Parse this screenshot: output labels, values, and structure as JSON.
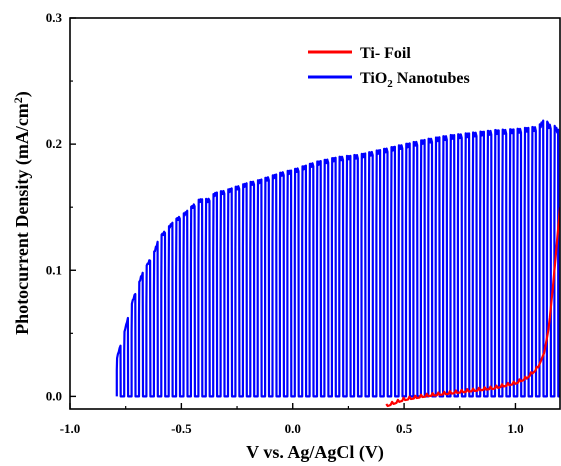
{
  "chart_data": {
    "type": "line",
    "title": "",
    "xlabel": "V vs. Ag/AgCl (V)",
    "ylabel_parts": {
      "pre": "Photocurrent Density (mA/cm",
      "sup": "2",
      "post": ")"
    },
    "xlim": [
      -1.0,
      1.2
    ],
    "ylim": [
      -0.01,
      0.3
    ],
    "xticks": [
      -1.0,
      -0.5,
      0.0,
      0.5,
      1.0
    ],
    "xtick_labels": [
      "-1.0",
      "-0.5",
      "0.0",
      "0.5",
      "1.0"
    ],
    "yticks": [
      0.0,
      0.1,
      0.2,
      0.3
    ],
    "ytick_labels": [
      "0.0",
      "0.1",
      "0.2",
      "0.3"
    ],
    "legend_position": "top-right",
    "series": [
      {
        "key": "ti_foil",
        "name": "Ti- Foil",
        "color": "#ff0000",
        "style": "smooth",
        "x": [
          0.42,
          0.5,
          0.6,
          0.7,
          0.8,
          0.9,
          1.0,
          1.05,
          1.1,
          1.13,
          1.15,
          1.17,
          1.19,
          1.2
        ],
        "y": [
          -0.008,
          -0.003,
          0.0,
          0.002,
          0.004,
          0.006,
          0.01,
          0.014,
          0.022,
          0.035,
          0.055,
          0.09,
          0.13,
          0.15
        ]
      },
      {
        "key": "tio2",
        "name_parts": {
          "pre": "TiO",
          "sub": "2",
          "post": " Nanotubes"
        },
        "color": "#0000ff",
        "style": "chopped",
        "pulse_period_v": 0.0333,
        "pulse_on_fraction": 0.5,
        "dark_current": 0.0,
        "x_start": -0.79,
        "x_end": 1.2,
        "envelope_x": [
          -0.79,
          -0.75,
          -0.72,
          -0.7,
          -0.68,
          -0.65,
          -0.62,
          -0.6,
          -0.55,
          -0.52,
          -0.48,
          -0.45,
          -0.42,
          -0.38,
          -0.35,
          -0.3,
          -0.25,
          -0.2,
          -0.15,
          -0.1,
          -0.05,
          0.0,
          0.1,
          0.2,
          0.3,
          0.4,
          0.5,
          0.6,
          0.7,
          0.8,
          0.9,
          1.0,
          1.05,
          1.1,
          1.13,
          1.15,
          1.18,
          1.2
        ],
        "envelope_y": [
          0.03,
          0.055,
          0.075,
          0.085,
          0.095,
          0.105,
          0.115,
          0.125,
          0.135,
          0.14,
          0.145,
          0.15,
          0.155,
          0.155,
          0.16,
          0.162,
          0.165,
          0.168,
          0.17,
          0.173,
          0.176,
          0.178,
          0.184,
          0.188,
          0.19,
          0.194,
          0.198,
          0.202,
          0.205,
          0.207,
          0.209,
          0.21,
          0.211,
          0.212,
          0.218,
          0.214,
          0.212,
          0.208
        ]
      }
    ]
  }
}
